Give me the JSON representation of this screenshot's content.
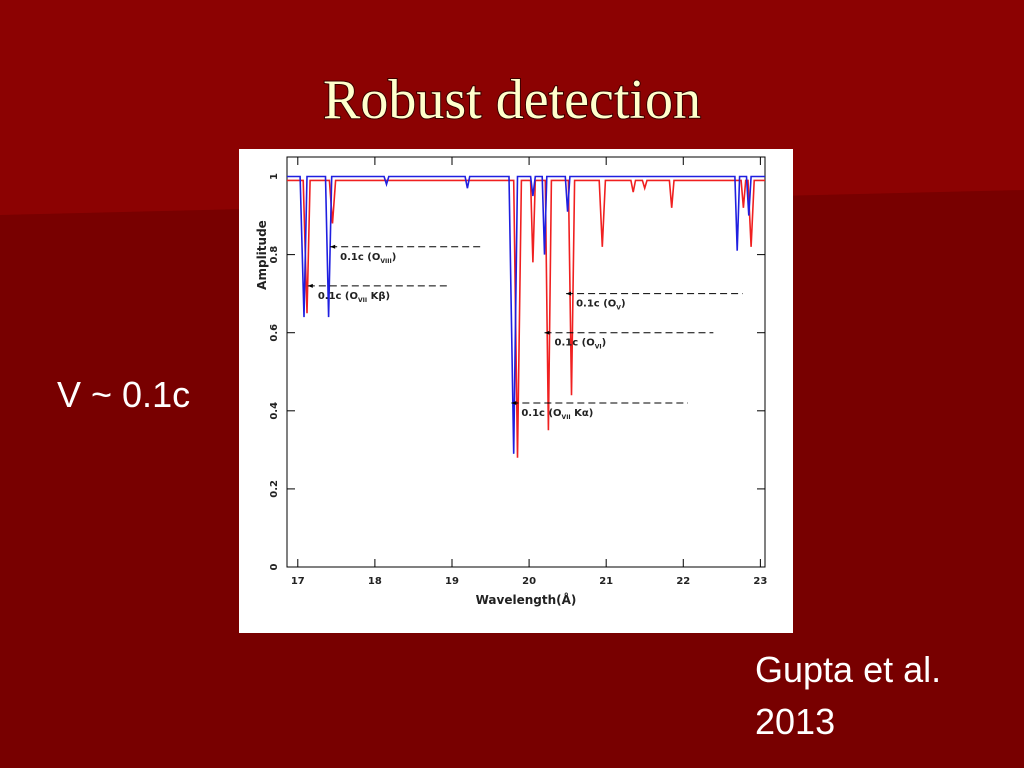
{
  "slide": {
    "title": "Robust detection",
    "bullet": "V ~ 0.1c",
    "credit": [
      "Gupta et al.",
      "2013"
    ]
  },
  "chart_data": {
    "type": "line",
    "xlabel": "Wavelength(Å)",
    "ylabel": "Amplitude",
    "xlim": [
      16.86,
      23.06
    ],
    "ylim": [
      0,
      1.05
    ],
    "xticks": [
      17,
      18,
      19,
      20,
      21,
      22,
      23
    ],
    "yticks": [
      0,
      0.2,
      0.4,
      0.6,
      0.8,
      1
    ],
    "series": [
      {
        "color": "#1f1fe0",
        "x": [
          16.86,
          17.03,
          17.08,
          17.12,
          17.36,
          17.4,
          17.44,
          18.12,
          18.15,
          18.18,
          19.17,
          19.2,
          19.23,
          19.74,
          19.8,
          19.85,
          20.02,
          20.05,
          20.08,
          20.17,
          20.2,
          20.23,
          20.47,
          20.5,
          20.53,
          22.67,
          22.7,
          22.73,
          22.82,
          22.85,
          22.88,
          23.06
        ],
        "values": [
          1,
          1,
          0.64,
          1,
          1,
          0.64,
          1,
          1,
          0.98,
          1,
          1,
          0.97,
          1,
          1,
          0.29,
          1,
          1,
          0.95,
          1,
          1,
          0.8,
          1,
          1,
          0.91,
          1,
          1,
          0.81,
          1,
          1,
          0.9,
          1,
          1
        ]
      },
      {
        "color": "#f02020",
        "x": [
          16.86,
          17.07,
          17.12,
          17.16,
          17.41,
          17.45,
          17.49,
          19.8,
          19.85,
          19.9,
          20.02,
          20.05,
          20.08,
          20.21,
          20.25,
          20.29,
          20.51,
          20.55,
          20.59,
          20.91,
          20.95,
          20.99,
          21.32,
          21.35,
          21.38,
          21.47,
          21.5,
          21.53,
          21.82,
          21.85,
          21.88,
          22.75,
          22.78,
          22.81,
          22.84,
          22.88,
          22.92,
          23.06
        ],
        "values": [
          0.99,
          0.99,
          0.65,
          0.99,
          0.99,
          0.88,
          0.99,
          0.99,
          0.28,
          0.99,
          0.99,
          0.78,
          0.99,
          0.99,
          0.35,
          0.99,
          0.99,
          0.44,
          0.99,
          0.99,
          0.82,
          0.99,
          0.99,
          0.96,
          0.99,
          0.99,
          0.97,
          0.99,
          0.99,
          0.92,
          0.99,
          0.99,
          0.92,
          0.99,
          0.99,
          0.82,
          0.99,
          0.99
        ]
      }
    ],
    "annotations": [
      {
        "text": "0.1c (O",
        "sub": "VIII",
        "tail": ")",
        "from": 17.42,
        "to": 19.39,
        "y": 0.82
      },
      {
        "text": "0.1c (O",
        "sub": "VII",
        "tail": " Kβ)",
        "from": 17.13,
        "to": 18.97,
        "y": 0.72
      },
      {
        "text": "0.1c (O",
        "sub": "V",
        "tail": ")",
        "from": 20.48,
        "to": 22.77,
        "y": 0.7
      },
      {
        "text": "0.1c (O",
        "sub": "VI",
        "tail": ")",
        "from": 20.2,
        "to": 22.39,
        "y": 0.6
      },
      {
        "text": "0.1c (O",
        "sub": "VII",
        "tail": " Kα)",
        "from": 19.77,
        "to": 22.06,
        "y": 0.42
      }
    ]
  }
}
